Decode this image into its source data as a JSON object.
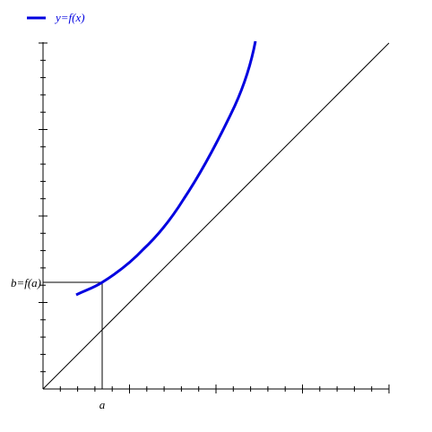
{
  "legend": {
    "label": "y=f(x)"
  },
  "labels": {
    "a": "a",
    "b": "b=f(a)"
  }
}
